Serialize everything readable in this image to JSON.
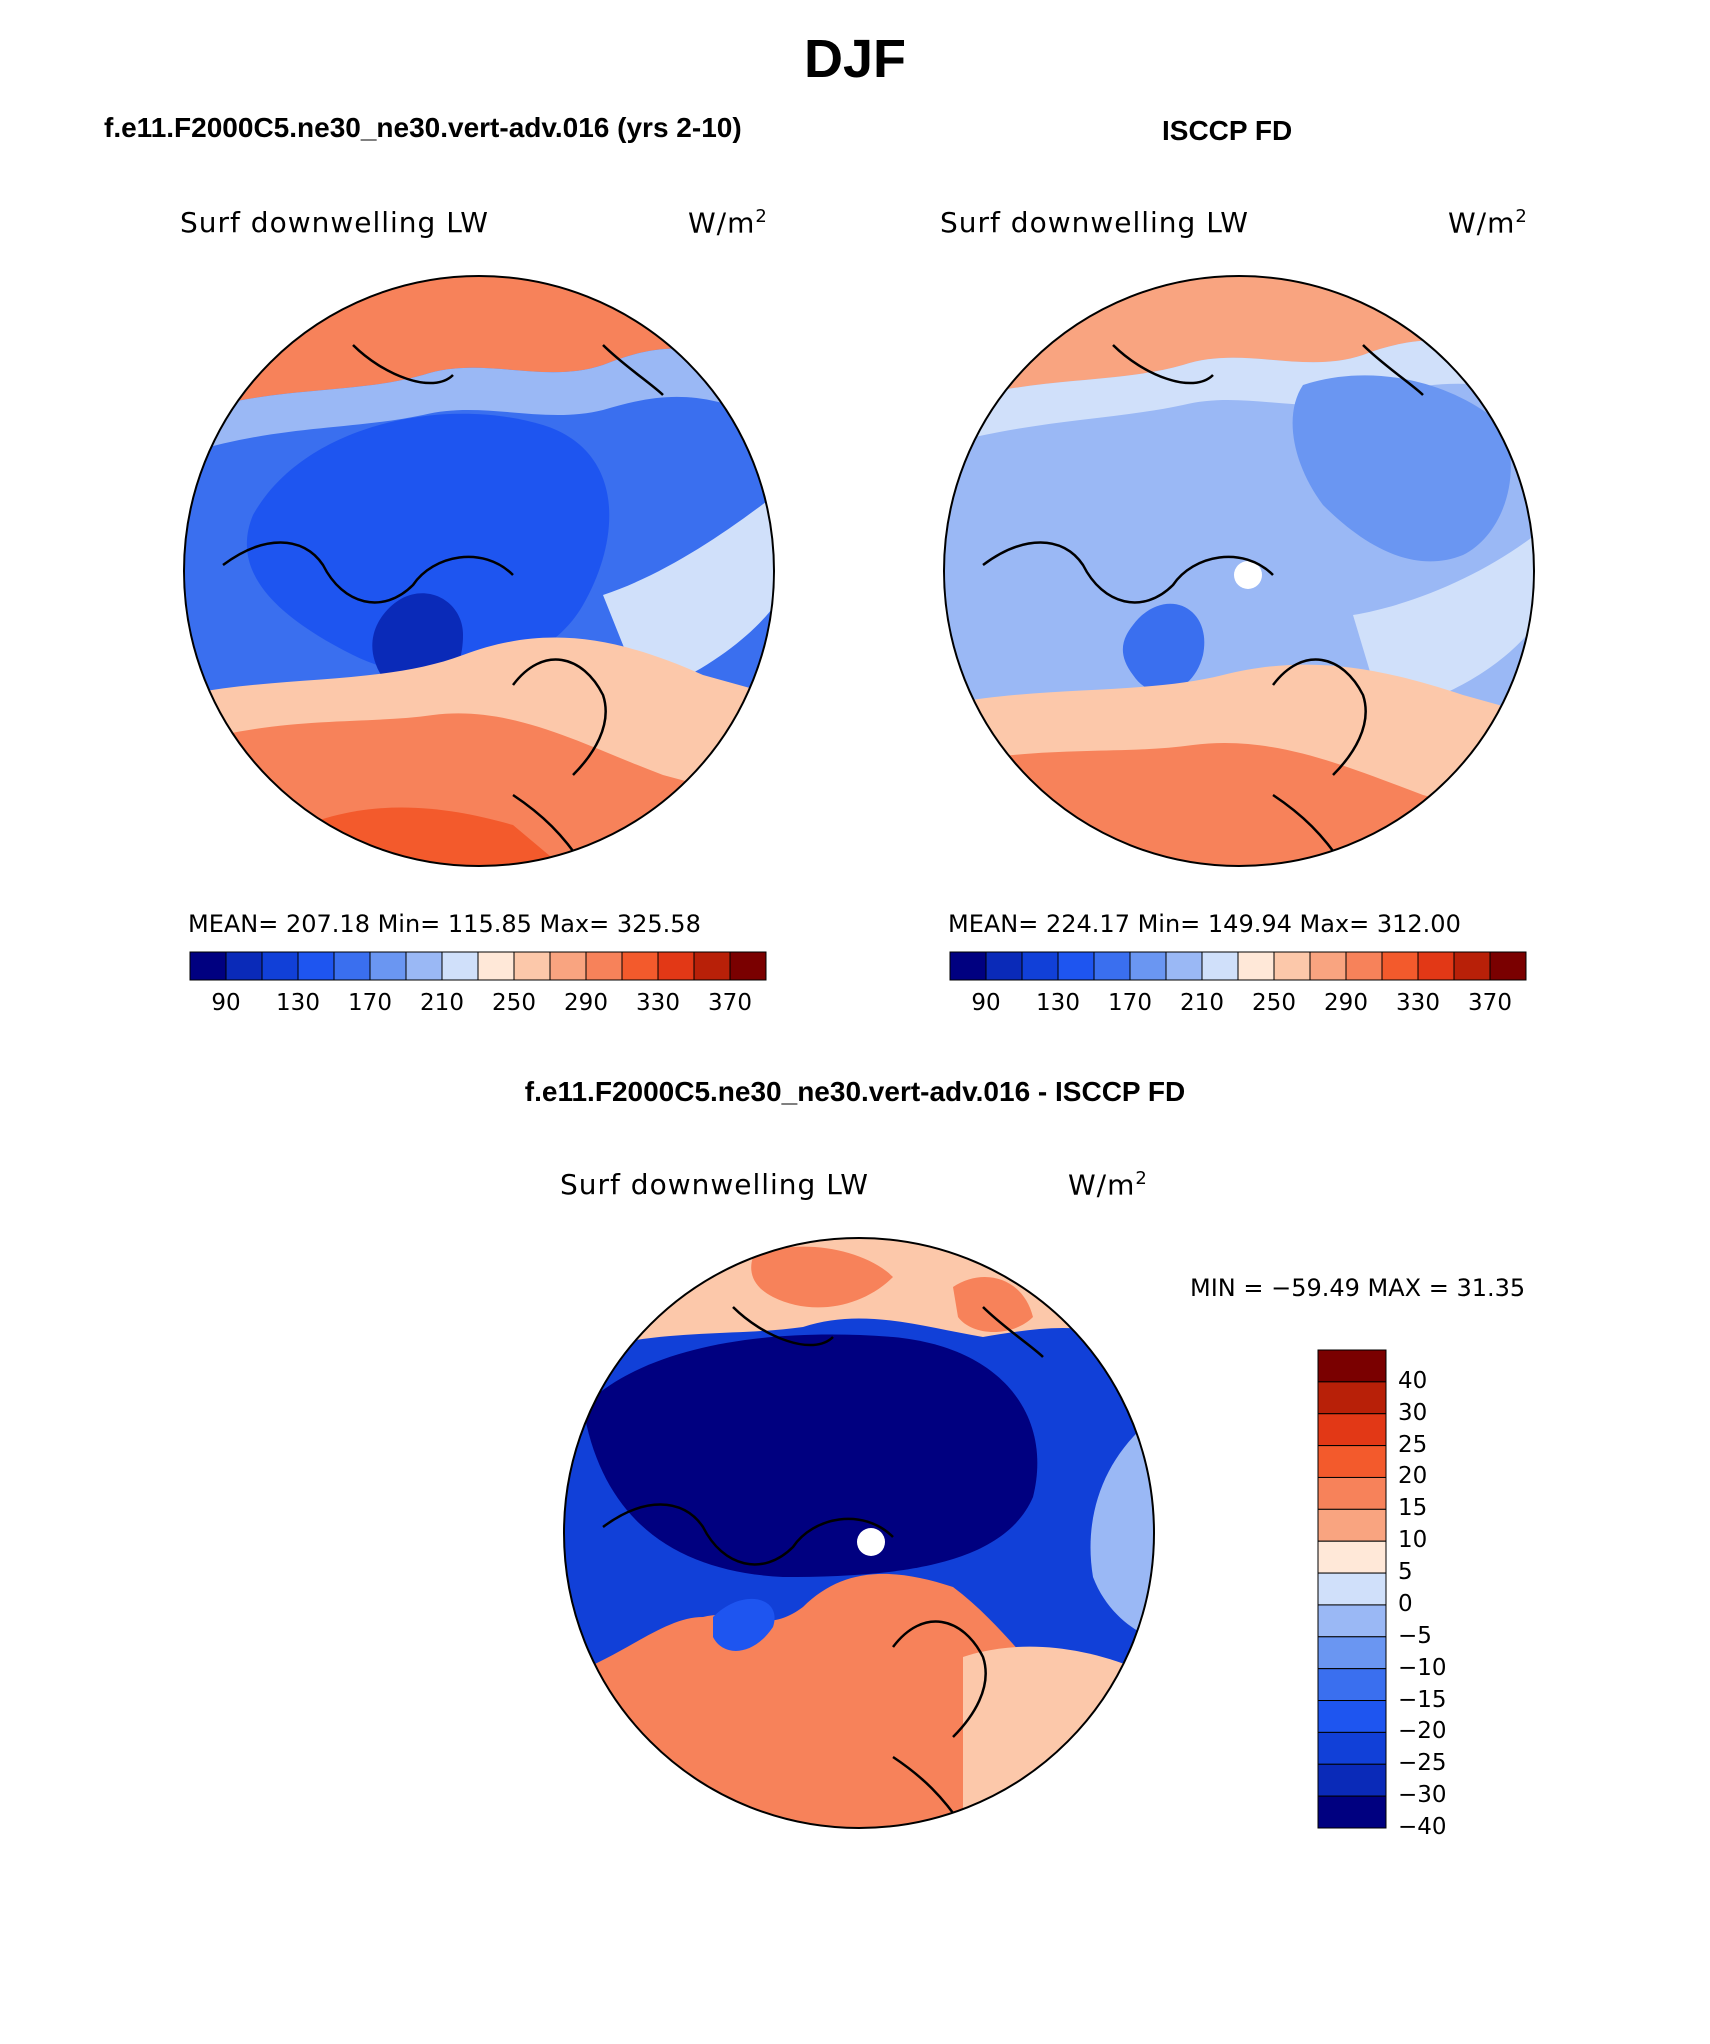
{
  "title": "DJF",
  "panels": [
    {
      "title": "f.e11.F2000C5.ne30_ne30.vert-adv.016 (yrs 2-10)",
      "variable": "Surf downwelling LW",
      "units": "W/m",
      "units_superscript": "2",
      "stats": "MEAN= 207.18   Min= 115.85   Max= 325.58",
      "colorbar": {
        "colors": [
          "#000080",
          "#0a2ab8",
          "#1140d8",
          "#1e55f0",
          "#3a6fef",
          "#6a96f2",
          "#9ab8f5",
          "#d0e0fa",
          "#ffe8d8",
          "#fcc8aa",
          "#f9a480",
          "#f7825a",
          "#f35a2c",
          "#e23816",
          "#b82008",
          "#7a0000"
        ],
        "tick_labels": [
          "90",
          "130",
          "170",
          "210",
          "250",
          "290",
          "330",
          "370"
        ]
      }
    },
    {
      "title": "ISCCP FD",
      "variable": "Surf downwelling LW",
      "units": "W/m",
      "units_superscript": "2",
      "stats": "MEAN= 224.17   Min= 149.94   Max= 312.00",
      "colorbar": {
        "colors": [
          "#000080",
          "#0a2ab8",
          "#1140d8",
          "#1e55f0",
          "#3a6fef",
          "#6a96f2",
          "#9ab8f5",
          "#d0e0fa",
          "#ffe8d8",
          "#fcc8aa",
          "#f9a480",
          "#f7825a",
          "#f35a2c",
          "#e23816",
          "#b82008",
          "#7a0000"
        ],
        "tick_labels": [
          "90",
          "130",
          "170",
          "210",
          "250",
          "290",
          "330",
          "370"
        ]
      }
    },
    {
      "title": "f.e11.F2000C5.ne30_ne30.vert-adv.016 - ISCCP FD",
      "variable": "Surf downwelling LW",
      "units": "W/m",
      "units_superscript": "2",
      "stats": "MIN = −59.49 MAX =  31.35",
      "colorbar": {
        "colors": [
          "#7a0000",
          "#b82008",
          "#e23816",
          "#f35a2c",
          "#f7825a",
          "#f9a480",
          "#ffe8d8",
          "#d0e0fa",
          "#9ab8f5",
          "#6a96f2",
          "#3a6fef",
          "#1e55f0",
          "#1140d8",
          "#0a2ab8",
          "#000080"
        ],
        "tick_labels": [
          "40",
          "30",
          "25",
          "20",
          "15",
          "10",
          "5",
          "0",
          "−5",
          "−10",
          "−15",
          "−20",
          "−25",
          "−30",
          "−40"
        ]
      }
    }
  ]
}
